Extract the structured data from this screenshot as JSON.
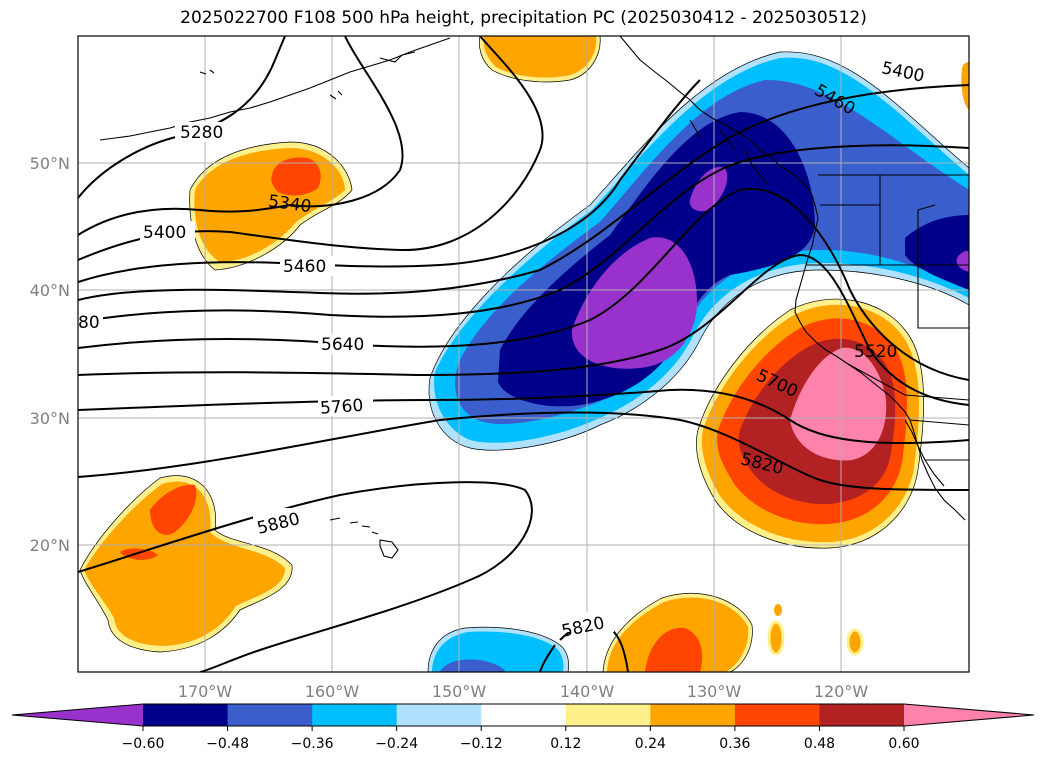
{
  "title": "2025022700 F108 500 hPa height, precipitation PC (2025030412 - 2025030512)",
  "map": {
    "lon_range": [
      -180,
      -110
    ],
    "lat_range": [
      10,
      60
    ],
    "lat_ticks": [
      "20°N",
      "30°N",
      "40°N",
      "50°N"
    ],
    "lon_ticks": [
      "170°W",
      "160°W",
      "150°W",
      "140°W",
      "130°W",
      "120°W"
    ],
    "grid": true
  },
  "height_contour_labels": [
    "5280",
    "5340",
    "5400",
    "5460",
    "80",
    "5640",
    "5760",
    "5880",
    "5400",
    "5460",
    "5520",
    "5700",
    "5820",
    "5820"
  ],
  "colorbar": {
    "ticks": [
      "−0.60",
      "−0.48",
      "−0.36",
      "−0.24",
      "−0.12",
      "0.12",
      "0.24",
      "0.36",
      "0.48",
      "0.60"
    ],
    "colors": [
      "#9932cc",
      "#00008b",
      "#3a5fcd",
      "#00bfff",
      "#b0e2ff",
      "#ffffff",
      "#fff08c",
      "#ffa500",
      "#ff4500",
      "#b22222",
      "#ff82ab"
    ]
  },
  "colors": {
    "grid": "#b0b0b0",
    "coast": "#000000",
    "contour": "#000000",
    "frame": "#000000"
  }
}
